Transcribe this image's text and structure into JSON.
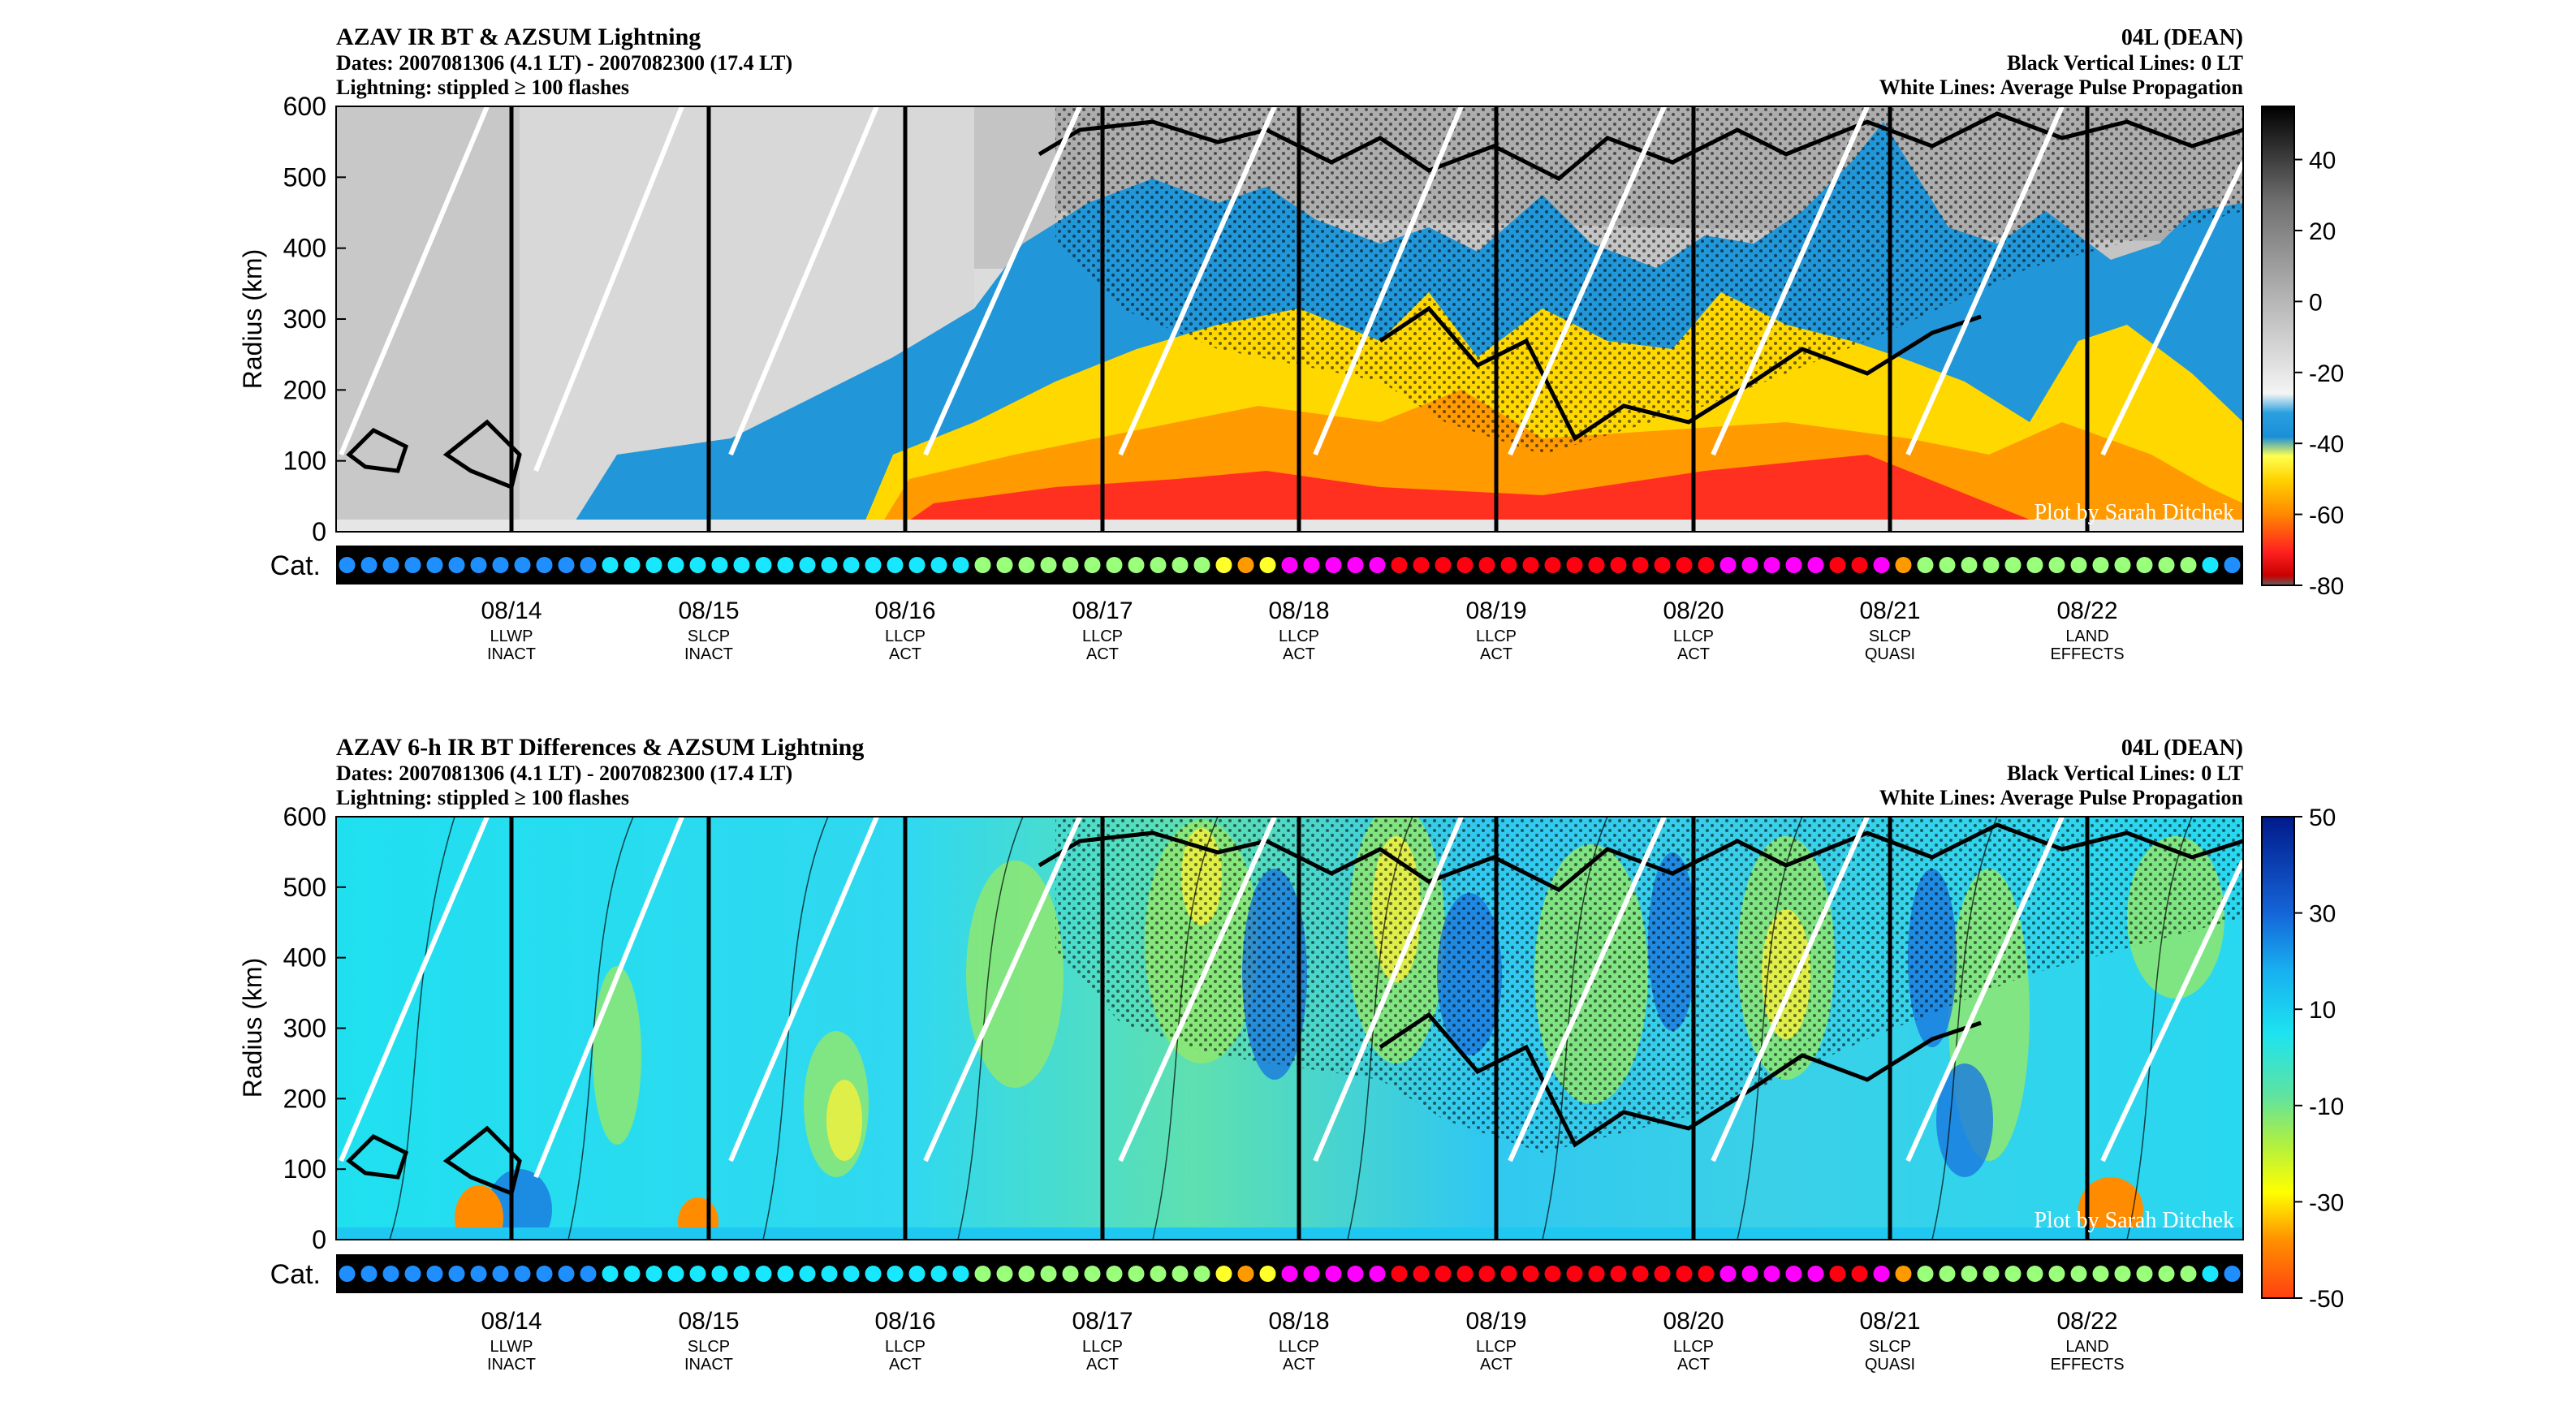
{
  "panels": [
    {
      "id": "bt",
      "title": "AZAV IR BT & AZSUM Lightning",
      "dates": "Dates: 2007081306 (4.1 LT) - 2007082300 (17.4 LT)",
      "lightning": "Lightning: stippled ≥ 100 flashes",
      "storm": "04L (DEAN)",
      "vlines": "Black Vertical Lines: 0 LT",
      "wlines": "White Lines: Average Pulse Propagation",
      "credit": "Plot by Sarah Ditchek"
    },
    {
      "id": "diff",
      "title": "AZAV 6-h IR BT Differences & AZSUM Lightning",
      "dates": "Dates: 2007081306 (4.1 LT) - 2007082300 (17.4 LT)",
      "lightning": "Lightning: stippled ≥ 100 flashes",
      "storm": "04L (DEAN)",
      "vlines": "Black Vertical Lines: 0 LT",
      "wlines": "White Lines: Average Pulse Propagation",
      "credit": "Plot by Sarah Ditchek"
    }
  ],
  "chart_data": [
    {
      "type": "heatmap",
      "ylabel": "Radius (km)",
      "y_ticks": [
        0,
        100,
        200,
        300,
        400,
        500,
        600
      ],
      "ylim": [
        0,
        600
      ],
      "x_tick_labels": [
        "08/14",
        "08/15",
        "08/16",
        "08/17",
        "08/18",
        "08/19",
        "08/20",
        "08/21",
        "08/22"
      ],
      "x_sublabels": [
        [
          "LLWP",
          "INACT"
        ],
        [
          "SLCP",
          "INACT"
        ],
        [
          "LLCP",
          "ACT"
        ],
        [
          "LLCP",
          "ACT"
        ],
        [
          "LLCP",
          "ACT"
        ],
        [
          "LLCP",
          "ACT"
        ],
        [
          "LLCP",
          "ACT"
        ],
        [
          "SLCP",
          "QUASI"
        ],
        [
          "LAND",
          "EFFECTS"
        ]
      ],
      "colorbar_ticks": [
        40,
        20,
        0,
        -20,
        -40,
        -60,
        -80
      ],
      "colorbar_range": [
        -80,
        55
      ],
      "category_label": "Cat."
    },
    {
      "type": "heatmap",
      "ylabel": "Radius (km)",
      "y_ticks": [
        0,
        100,
        200,
        300,
        400,
        500,
        600
      ],
      "ylim": [
        0,
        600
      ],
      "x_tick_labels": [
        "08/14",
        "08/15",
        "08/16",
        "08/17",
        "08/18",
        "08/19",
        "08/20",
        "08/21",
        "08/22"
      ],
      "x_sublabels": [
        [
          "LLWP",
          "INACT"
        ],
        [
          "SLCP",
          "INACT"
        ],
        [
          "LLCP",
          "ACT"
        ],
        [
          "LLCP",
          "ACT"
        ],
        [
          "LLCP",
          "ACT"
        ],
        [
          "LLCP",
          "ACT"
        ],
        [
          "LLCP",
          "ACT"
        ],
        [
          "SLCP",
          "QUASI"
        ],
        [
          "LAND",
          "EFFECTS"
        ]
      ],
      "colorbar_ticks": [
        50,
        30,
        10,
        -10,
        -30,
        -50
      ],
      "colorbar_range": [
        -50,
        50
      ],
      "category_label": "Cat."
    }
  ],
  "categories": [
    "TD",
    "TD",
    "TD",
    "TD",
    "TD",
    "TD",
    "TD",
    "TD",
    "TD",
    "TD",
    "TD",
    "TD",
    "TS",
    "TS",
    "TS",
    "TS",
    "TS",
    "TS",
    "TS",
    "TS",
    "TS",
    "TS",
    "TS",
    "TS",
    "TS",
    "TS",
    "TS",
    "TS",
    "TS",
    "H1",
    "H1",
    "H1",
    "H1",
    "H1",
    "H1",
    "H1",
    "H1",
    "H1",
    "H1",
    "H1",
    "H2",
    "H3",
    "H2",
    "H4",
    "H4",
    "H4",
    "H4",
    "H4",
    "H5",
    "H5",
    "H5",
    "H5",
    "H5",
    "H5",
    "H5",
    "H5",
    "H5",
    "H5",
    "H5",
    "H5",
    "H5",
    "H5",
    "H5",
    "H4",
    "H4",
    "H4",
    "H4",
    "H4",
    "H5",
    "H5",
    "H4",
    "H3",
    "H1",
    "H1",
    "H1",
    "H1",
    "H1",
    "H1",
    "H1",
    "H1",
    "H1",
    "H1",
    "H1",
    "H1",
    "H1",
    "TS",
    "TD"
  ],
  "category_colors": {
    "TD": "#1f8fff",
    "TS": "#17e8ff",
    "H1": "#9aff7a",
    "H2": "#ffff2a",
    "H3": "#ff9900",
    "H4": "#ff00ff",
    "H5": "#ff0010"
  }
}
